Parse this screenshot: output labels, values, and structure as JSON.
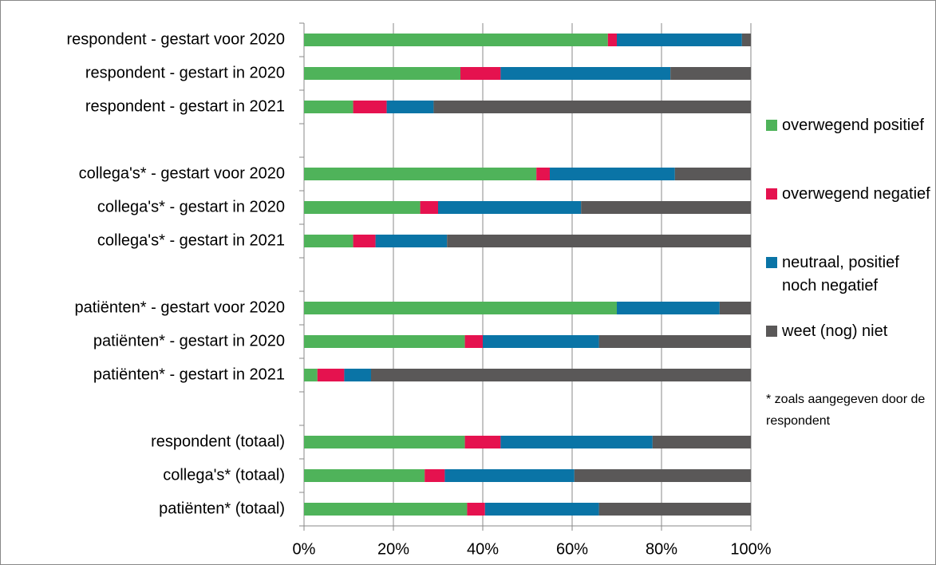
{
  "chart_data": {
    "type": "stacked-bar-horizontal",
    "categories": [
      "respondent - gestart voor 2020",
      "respondent - gestart in 2020",
      "respondent - gestart in 2021",
      null,
      "collega's* - gestart voor 2020",
      "collega's* - gestart in 2020",
      "collega's* - gestart in 2021",
      null,
      "patiënten* - gestart voor 2020",
      "patiënten* - gestart in 2020",
      "patiënten* - gestart in 2021",
      null,
      "respondent (totaal)",
      "collega's* (totaal)",
      "patiënten* (totaal)"
    ],
    "series": [
      {
        "name": "overwegend positief",
        "color": "#4fb35a",
        "values": [
          68,
          35,
          11,
          null,
          52,
          26,
          11,
          null,
          70,
          36,
          3,
          null,
          36,
          27,
          36.5
        ]
      },
      {
        "name": "overwegend negatief",
        "color": "#e5124f",
        "values": [
          2,
          9,
          7.5,
          null,
          3,
          4,
          5,
          null,
          0,
          4,
          6,
          null,
          8,
          4.5,
          4
        ]
      },
      {
        "name": "neutraal, positief noch negatief",
        "color": "#0a74a6",
        "values": [
          28,
          38,
          10.5,
          null,
          28,
          32,
          16,
          null,
          23,
          26,
          6,
          null,
          34,
          29,
          25.5
        ]
      },
      {
        "name": "weet (nog) niet",
        "color": "#5a5858",
        "values": [
          2,
          18,
          71,
          null,
          17,
          38,
          68,
          null,
          7,
          34,
          85,
          null,
          22,
          39.5,
          34
        ]
      }
    ],
    "xlim": [
      0,
      100
    ],
    "xticks": [
      {
        "value": 0,
        "label": "0%"
      },
      {
        "value": 20,
        "label": "20%"
      },
      {
        "value": 40,
        "label": "40%"
      },
      {
        "value": 60,
        "label": "60%"
      },
      {
        "value": 80,
        "label": "80%"
      },
      {
        "value": 100,
        "label": "100%"
      }
    ],
    "grid": true,
    "legend": "right",
    "annotation": "* zoals aangegeven door de respondent"
  }
}
